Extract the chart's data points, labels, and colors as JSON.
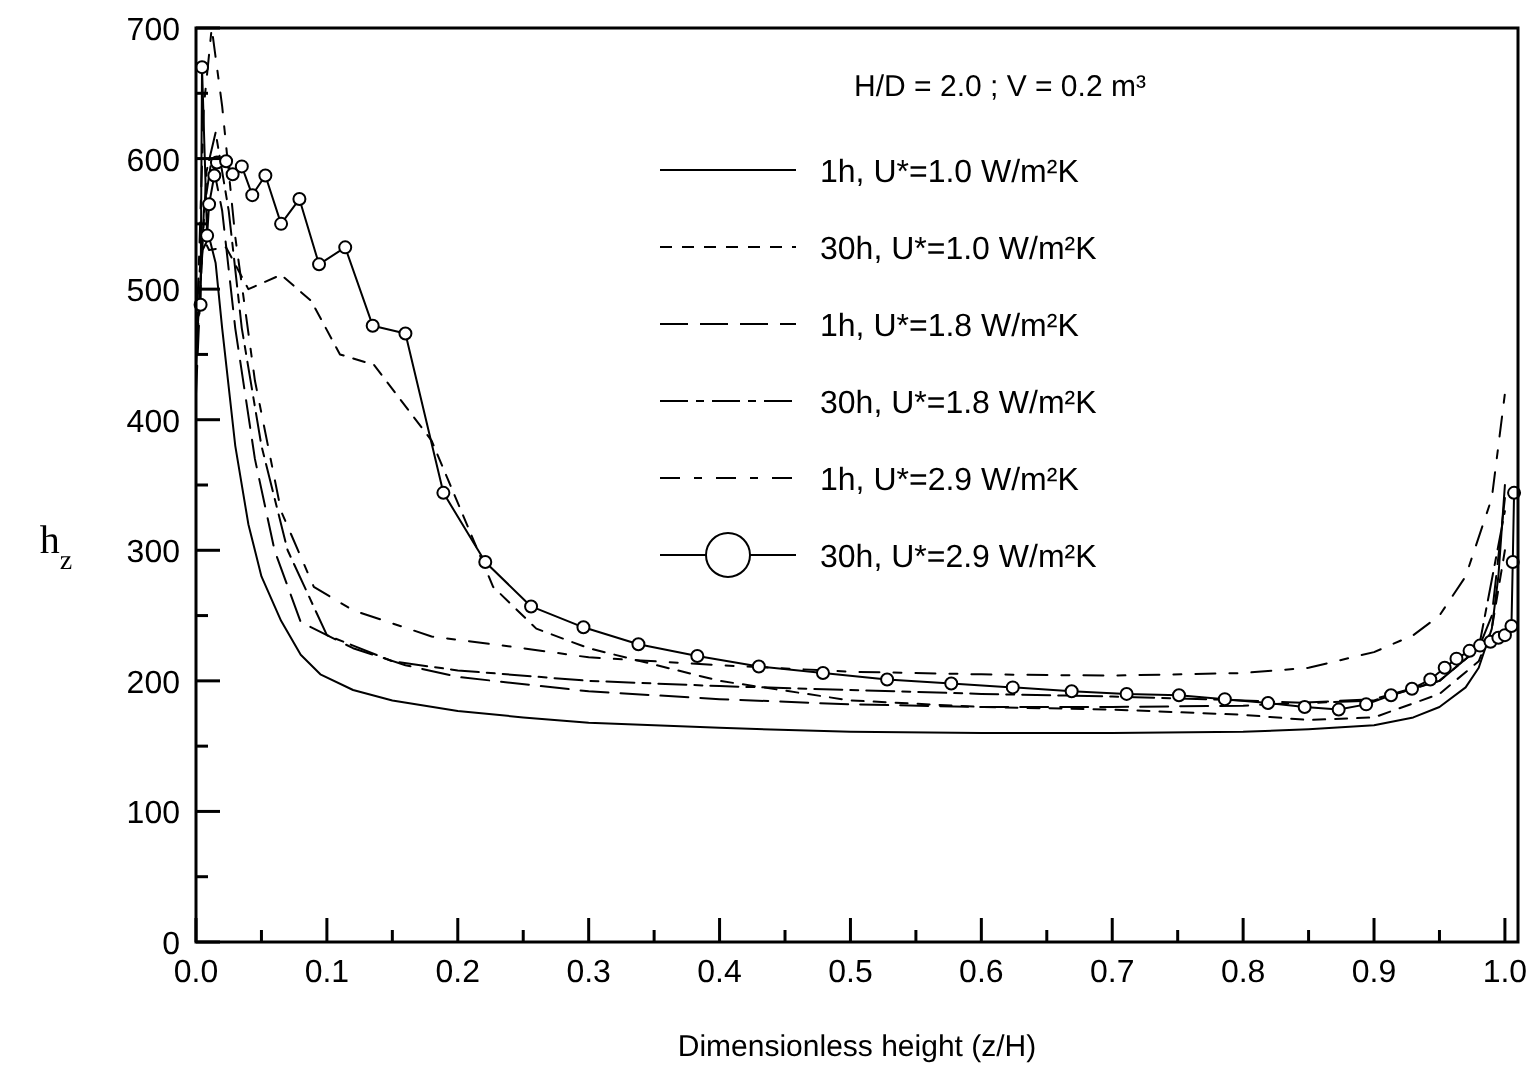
{
  "chart_data": {
    "type": "line",
    "subtitle": "H/D = 2.0 ; V = 0.2 m³",
    "xlabel": "Dimensionless height (z/H)",
    "ylabel": "h$_{z}$",
    "xlim": [
      0,
      1.01
    ],
    "ylim": [
      0,
      700
    ],
    "xticks": [
      {
        "value": 0,
        "label": "0.0"
      },
      {
        "value": 0.05,
        "label": null
      },
      {
        "value": 0.1,
        "label": "0.1"
      },
      {
        "value": 0.15,
        "label": null
      },
      {
        "value": 0.2,
        "label": "0.2"
      },
      {
        "value": 0.25,
        "label": null
      },
      {
        "value": 0.3,
        "label": "0.3"
      },
      {
        "value": 0.35,
        "label": null
      },
      {
        "value": 0.4,
        "label": "0.4"
      },
      {
        "value": 0.45,
        "label": null
      },
      {
        "value": 0.5,
        "label": "0.5"
      },
      {
        "value": 0.55,
        "label": null
      },
      {
        "value": 0.6,
        "label": "0.6"
      },
      {
        "value": 0.65,
        "label": null
      },
      {
        "value": 0.7,
        "label": "0.7"
      },
      {
        "value": 0.75,
        "label": null
      },
      {
        "value": 0.8,
        "label": "0.8"
      },
      {
        "value": 0.85,
        "label": null
      },
      {
        "value": 0.9,
        "label": "0.9"
      },
      {
        "value": 0.95,
        "label": null
      },
      {
        "value": 1,
        "label": "1.0"
      }
    ],
    "yticks": [
      0,
      {
        "value": 50,
        "label": null
      },
      100,
      {
        "value": 150,
        "label": null
      },
      200,
      {
        "value": 250,
        "label": null
      },
      300,
      {
        "value": 350,
        "label": null
      },
      400,
      {
        "value": 450,
        "label": null
      },
      500,
      {
        "value": 550,
        "label": null
      },
      600,
      {
        "value": 650,
        "label": null
      },
      700
    ],
    "grid": false,
    "legend": "top right",
    "marker": "none",
    "series": [
      {
        "name": "1h, U*=1.0 W/m²K",
        "color": "#000000",
        "line_style": "solid",
        "x": [
          0,
          0.005,
          0.01,
          0.015,
          0.02,
          0.03,
          0.04,
          0.05,
          0.065,
          0.08,
          0.095,
          0.12,
          0.15,
          0.2,
          0.25,
          0.3,
          0.4,
          0.5,
          0.6,
          0.7,
          0.8,
          0.85,
          0.9,
          0.93,
          0.95,
          0.97,
          0.98,
          0.99,
          0.995,
          1.0
        ],
        "values": [
          450,
          530,
          540,
          520,
          470,
          380,
          320,
          280,
          246,
          220,
          205,
          193,
          185,
          177,
          172,
          168,
          164,
          161,
          160,
          160,
          161,
          163,
          166,
          172,
          180,
          195,
          210,
          240,
          280,
          350
        ]
      },
      {
        "name": "30h, U*=1.0 W/m²K",
        "color": "#000000",
        "line_style": "dashed",
        "x": [
          0,
          0.005,
          0.01,
          0.023,
          0.04,
          0.065,
          0.088,
          0.11,
          0.136,
          0.18,
          0.227,
          0.26,
          0.3,
          0.4,
          0.5,
          0.6,
          0.7,
          0.8,
          0.85,
          0.9,
          0.95,
          0.98,
          0.99,
          1.0
        ],
        "values": [
          480,
          540,
          530,
          532,
          500,
          511,
          491,
          450,
          442,
          384,
          272,
          240,
          225,
          200,
          185,
          180,
          178,
          174,
          170,
          172,
          190,
          215,
          240,
          300
        ]
      },
      {
        "name": "1h, U*=1.8 W/m²K",
        "color": "#000000",
        "line_style": "dashed",
        "x": [
          0,
          0.006,
          0.012,
          0.02,
          0.03,
          0.045,
          0.06,
          0.08,
          0.12,
          0.16,
          0.2,
          0.3,
          0.4,
          0.5,
          0.6,
          0.7,
          0.8,
          0.9,
          0.95,
          0.98,
          0.99,
          1.0
        ],
        "values": [
          420,
          560,
          600,
          560,
          470,
          370,
          300,
          245,
          225,
          212,
          203,
          192,
          186,
          182,
          180,
          180,
          181,
          186,
          200,
          225,
          250,
          340
        ]
      },
      {
        "name": "30h, U*=1.8 W/m²K",
        "color": "#000000",
        "line_style": "dashed",
        "x": [
          0,
          0.008,
          0.015,
          0.025,
          0.035,
          0.05,
          0.07,
          0.1,
          0.15,
          0.2,
          0.3,
          0.4,
          0.5,
          0.6,
          0.7,
          0.8,
          0.85,
          0.9,
          0.95,
          0.98,
          1.0
        ],
        "values": [
          440,
          590,
          620,
          560,
          470,
          380,
          300,
          235,
          215,
          208,
          200,
          196,
          193,
          190,
          188,
          185,
          183,
          185,
          200,
          225,
          330
        ]
      },
      {
        "name": "1h, U*=2.9 W/m²K",
        "color": "#000000",
        "line_style": "dashed",
        "x": [
          0,
          0.006,
          0.012,
          0.02,
          0.03,
          0.045,
          0.065,
          0.09,
          0.12,
          0.18,
          0.25,
          0.3,
          0.4,
          0.5,
          0.6,
          0.7,
          0.8,
          0.85,
          0.9,
          0.93,
          0.95,
          0.97,
          0.99,
          1.0
        ],
        "values": [
          450,
          640,
          700,
          640,
          540,
          430,
          330,
          272,
          254,
          234,
          225,
          218,
          212,
          207,
          205,
          204,
          206,
          210,
          222,
          235,
          250,
          280,
          340,
          420
        ]
      },
      {
        "name": "30h, U*=2.9 W/m²K",
        "color": "#000000",
        "line_style": "solid",
        "marker": "circle",
        "x": [
          0.0035,
          0.0046,
          0.0085,
          0.01,
          0.014,
          0.016,
          0.023,
          0.028,
          0.035,
          0.043,
          0.053,
          0.065,
          0.079,
          0.094,
          0.114,
          0.135,
          0.16,
          0.189,
          0.221,
          0.256,
          0.296,
          0.338,
          0.383,
          0.43,
          0.479,
          0.528,
          0.577,
          0.624,
          0.669,
          0.711,
          0.751,
          0.786,
          0.819,
          0.847,
          0.873,
          0.894,
          0.913,
          0.929,
          0.943,
          0.954,
          0.963,
          0.973,
          0.981,
          0.989,
          0.995,
          1.0,
          1.005,
          1.006,
          1.007
        ],
        "values": [
          488,
          670,
          541,
          565,
          587,
          597,
          598,
          588,
          594,
          572,
          587,
          550,
          569,
          519,
          532,
          472,
          466,
          344,
          291,
          257,
          241,
          228,
          219,
          211,
          206,
          201,
          198,
          195,
          192,
          190,
          189,
          186,
          183,
          180,
          178,
          182,
          189,
          194,
          201,
          210,
          217,
          223,
          227,
          230,
          233,
          235,
          242,
          291,
          344
        ]
      }
    ]
  }
}
